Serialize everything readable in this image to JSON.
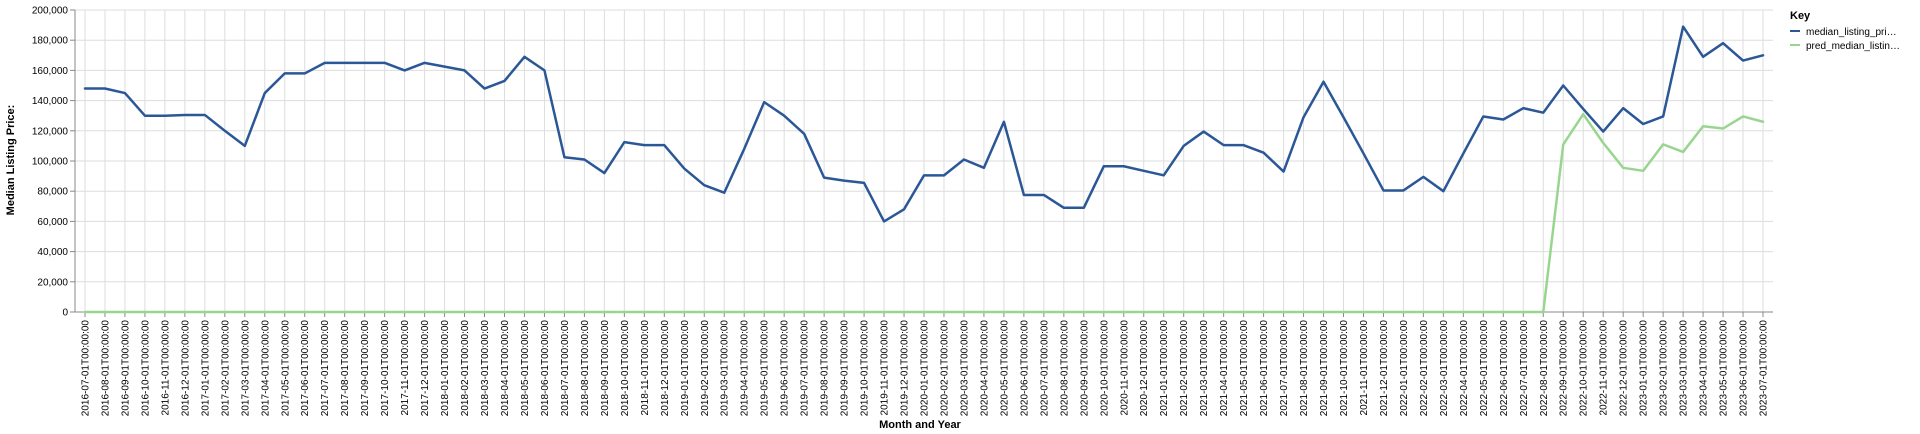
{
  "chart_data": {
    "type": "line",
    "title": "",
    "xlabel": "Month and Year",
    "ylabel": "Median Listing Price:",
    "ylim": [
      0,
      200000
    ],
    "yticks": [
      "0",
      "20,000",
      "40,000",
      "60,000",
      "80,000",
      "100,000",
      "120,000",
      "140,000",
      "160,000",
      "180,000",
      "200,000"
    ],
    "ytick_values": [
      0,
      20000,
      40000,
      60000,
      80000,
      100000,
      120000,
      140000,
      160000,
      180000,
      200000
    ],
    "grid": true,
    "legend": {
      "title": "Key",
      "placement": "right"
    },
    "x": [
      "2016-07-01T00:00:00",
      "2016-08-01T00:00:00",
      "2016-09-01T00:00:00",
      "2016-10-01T00:00:00",
      "2016-11-01T00:00:00",
      "2016-12-01T00:00:00",
      "2017-01-01T00:00:00",
      "2017-02-01T00:00:00",
      "2017-03-01T00:00:00",
      "2017-04-01T00:00:00",
      "2017-05-01T00:00:00",
      "2017-06-01T00:00:00",
      "2017-07-01T00:00:00",
      "2017-08-01T00:00:00",
      "2017-09-01T00:00:00",
      "2017-10-01T00:00:00",
      "2017-11-01T00:00:00",
      "2017-12-01T00:00:00",
      "2018-01-01T00:00:00",
      "2018-02-01T00:00:00",
      "2018-03-01T00:00:00",
      "2018-04-01T00:00:00",
      "2018-05-01T00:00:00",
      "2018-06-01T00:00:00",
      "2018-07-01T00:00:00",
      "2018-08-01T00:00:00",
      "2018-09-01T00:00:00",
      "2018-10-01T00:00:00",
      "2018-11-01T00:00:00",
      "2018-12-01T00:00:00",
      "2019-01-01T00:00:00",
      "2019-02-01T00:00:00",
      "2019-03-01T00:00:00",
      "2019-04-01T00:00:00",
      "2019-05-01T00:00:00",
      "2019-06-01T00:00:00",
      "2019-07-01T00:00:00",
      "2019-08-01T00:00:00",
      "2019-09-01T00:00:00",
      "2019-10-01T00:00:00",
      "2019-11-01T00:00:00",
      "2019-12-01T00:00:00",
      "2020-01-01T00:00:00",
      "2020-02-01T00:00:00",
      "2020-03-01T00:00:00",
      "2020-04-01T00:00:00",
      "2020-05-01T00:00:00",
      "2020-06-01T00:00:00",
      "2020-07-01T00:00:00",
      "2020-08-01T00:00:00",
      "2020-09-01T00:00:00",
      "2020-10-01T00:00:00",
      "2020-11-01T00:00:00",
      "2020-12-01T00:00:00",
      "2021-01-01T00:00:00",
      "2021-02-01T00:00:00",
      "2021-03-01T00:00:00",
      "2021-04-01T00:00:00",
      "2021-05-01T00:00:00",
      "2021-06-01T00:00:00",
      "2021-07-01T00:00:00",
      "2021-08-01T00:00:00",
      "2021-09-01T00:00:00",
      "2021-10-01T00:00:00",
      "2021-11-01T00:00:00",
      "2021-12-01T00:00:00",
      "2022-01-01T00:00:00",
      "2022-02-01T00:00:00",
      "2022-03-01T00:00:00",
      "2022-04-01T00:00:00",
      "2022-05-01T00:00:00",
      "2022-06-01T00:00:00",
      "2022-07-01T00:00:00",
      "2022-08-01T00:00:00",
      "2022-09-01T00:00:00",
      "2022-10-01T00:00:00",
      "2022-11-01T00:00:00",
      "2022-12-01T00:00:00",
      "2023-01-01T00:00:00",
      "2023-02-01T00:00:00",
      "2023-03-01T00:00:00",
      "2023-04-01T00:00:00",
      "2023-05-01T00:00:00",
      "2023-06-01T00:00:00",
      "2023-07-01T00:00:00"
    ],
    "series": [
      {
        "name": "median_listing_pri…",
        "color": "#2b5797",
        "values": [
          148000,
          148000,
          145000,
          130000,
          130000,
          130500,
          130500,
          120000,
          110000,
          145000,
          158000,
          158000,
          165000,
          165000,
          165000,
          165000,
          160000,
          165000,
          162500,
          160000,
          148000,
          153000,
          169000,
          160000,
          102500,
          101000,
          92000,
          112500,
          110500,
          110500,
          95000,
          84000,
          79000,
          108000,
          139000,
          130000,
          118000,
          89000,
          87000,
          85500,
          60000,
          68000,
          90500,
          90500,
          101000,
          95500,
          126000,
          77500,
          77500,
          69000,
          69000,
          96500,
          96500,
          93500,
          90500,
          110000,
          119500,
          110500,
          110500,
          105500,
          93000,
          129000,
          152500,
          129000,
          105000,
          80500,
          80500,
          89500,
          80000,
          105000,
          129500,
          127500,
          135000,
          132000,
          150000,
          134500,
          119500,
          135000,
          124500,
          129500,
          189000,
          169000,
          178000,
          166500,
          170000
        ]
      },
      {
        "name": "pred_median_listin…",
        "color": "#98d68f",
        "values": [
          0,
          0,
          0,
          0,
          0,
          0,
          0,
          0,
          0,
          0,
          0,
          0,
          0,
          0,
          0,
          0,
          0,
          0,
          0,
          0,
          0,
          0,
          0,
          0,
          0,
          0,
          0,
          0,
          0,
          0,
          0,
          0,
          0,
          0,
          0,
          0,
          0,
          0,
          0,
          0,
          0,
          0,
          0,
          0,
          0,
          0,
          0,
          0,
          0,
          0,
          0,
          0,
          0,
          0,
          0,
          0,
          0,
          0,
          0,
          0,
          0,
          0,
          0,
          0,
          0,
          0,
          0,
          0,
          0,
          0,
          0,
          0,
          0,
          0,
          111000,
          131000,
          112000,
          95500,
          93500,
          111000,
          106000,
          123000,
          121500,
          129500,
          126000
        ]
      }
    ]
  }
}
